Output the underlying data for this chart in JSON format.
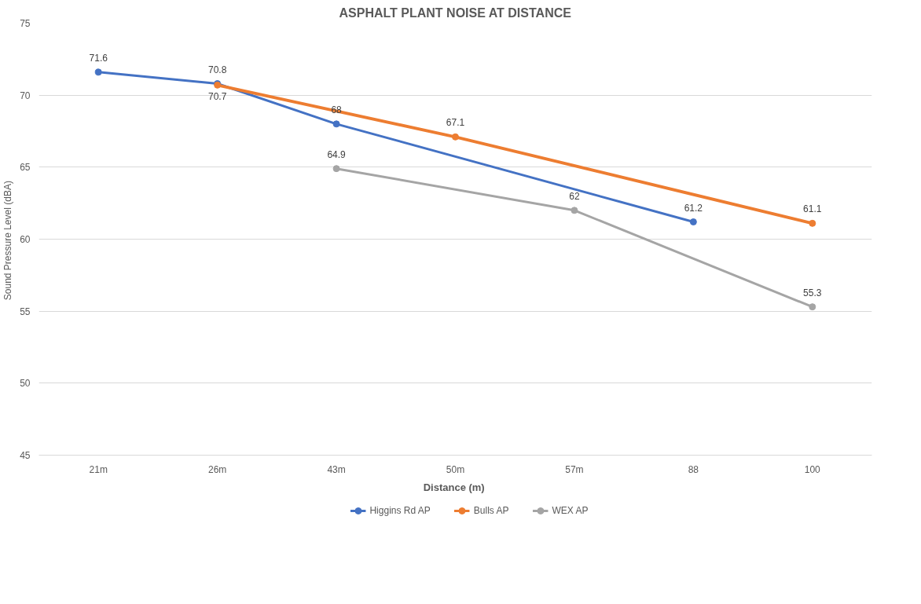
{
  "chart_data": {
    "type": "line",
    "title": "ASPHALT PLANT NOISE AT DISTANCE",
    "xlabel": "Distance  (m)",
    "ylabel": "Sound Pressure Level  (dBA)",
    "categories": [
      "21m",
      "26m",
      "43m",
      "50m",
      "57m",
      "88",
      "100"
    ],
    "series": [
      {
        "name": "Higgins Rd AP",
        "color": "#4472c4",
        "values": [
          71.6,
          70.8,
          68,
          null,
          null,
          61.2,
          null
        ]
      },
      {
        "name": "Bulls AP",
        "color": "#ed7d31",
        "values": [
          null,
          70.7,
          null,
          67.1,
          null,
          null,
          61.1
        ]
      },
      {
        "name": "WEX AP",
        "color": "#a5a5a5",
        "values": [
          null,
          null,
          64.9,
          null,
          62,
          null,
          55.3
        ]
      }
    ],
    "ylim": [
      45,
      75
    ],
    "yticks": [
      45,
      50,
      55,
      60,
      65,
      70,
      75
    ],
    "grid": "y",
    "legend": "bottom",
    "marker": "circle",
    "line_style": "solid",
    "data_labels": true
  }
}
